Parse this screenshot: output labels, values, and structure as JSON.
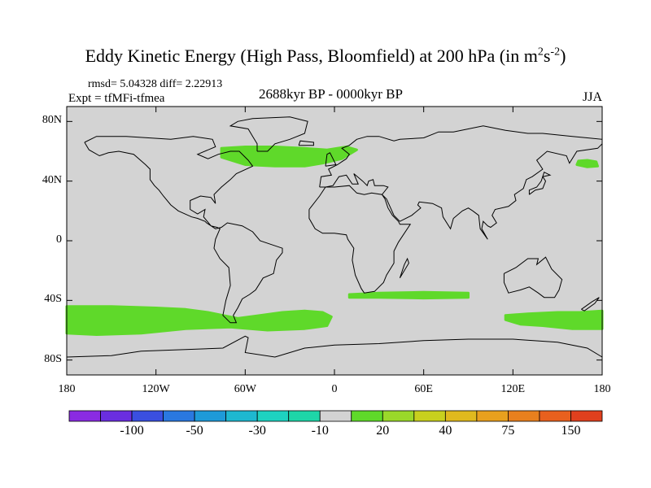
{
  "title": {
    "main": "Eddy Kinetic Energy (High Pass, Bloomfield) at 200 hPa (in m",
    "sup1": "2",
    "mid": "s",
    "sup2": "-2",
    "end": ")"
  },
  "stats": "rmsd= 5.04328 diff= 2.22913",
  "expt": "Expt = tfMFi-tfmea",
  "period": "2688kyr BP - 0000kyr BP",
  "season": "JJA",
  "chart_data": {
    "type": "map",
    "projection": "cylindrical equidistant",
    "lon_range": [
      -180,
      180
    ],
    "lat_range": [
      -90,
      90
    ],
    "ocean_land_fill": "#d3d3d3",
    "y_ticks": [
      {
        "lat": 80,
        "label": "80N"
      },
      {
        "lat": 40,
        "label": "40N"
      },
      {
        "lat": 0,
        "label": "0"
      },
      {
        "lat": -40,
        "label": "40S"
      },
      {
        "lat": -80,
        "label": "80S"
      }
    ],
    "x_ticks": [
      {
        "lon": -180,
        "label": "180"
      },
      {
        "lon": -120,
        "label": "120W"
      },
      {
        "lon": -60,
        "label": "60W"
      },
      {
        "lon": 0,
        "label": "0"
      },
      {
        "lon": 60,
        "label": "60E"
      },
      {
        "lon": 120,
        "label": "120E"
      },
      {
        "lon": 180,
        "label": "180"
      }
    ],
    "anomaly_regions": [
      {
        "name": "North Atlantic",
        "value_range": "10 to 20",
        "color": "#5fd92a",
        "polygon": [
          [
            -76,
            62
          ],
          [
            -60,
            63
          ],
          [
            -40,
            63
          ],
          [
            -20,
            62
          ],
          [
            -5,
            61
          ],
          [
            8,
            63
          ],
          [
            15,
            61
          ],
          [
            5,
            55
          ],
          [
            -8,
            52
          ],
          [
            -20,
            50
          ],
          [
            -40,
            50
          ],
          [
            -60,
            51
          ],
          [
            -76,
            56
          ]
        ]
      },
      {
        "name": "South Indian Ocean",
        "value_range": "10 to 20",
        "color": "#5fd92a",
        "polygon": [
          [
            10,
            -36
          ],
          [
            30,
            -35
          ],
          [
            60,
            -34.5
          ],
          [
            90,
            -35
          ],
          [
            90,
            -38
          ],
          [
            60,
            -38.5
          ],
          [
            30,
            -38
          ],
          [
            10,
            -38
          ]
        ]
      },
      {
        "name": "Southern Ocean Pacific",
        "value_range": "10 to 20",
        "color": "#5fd92a",
        "polygon": [
          [
            -180,
            -44
          ],
          [
            -150,
            -44
          ],
          [
            -120,
            -45
          ],
          [
            -100,
            -46
          ],
          [
            -85,
            -48
          ],
          [
            -75,
            -50
          ],
          [
            -65,
            -52
          ],
          [
            -50,
            -50
          ],
          [
            -35,
            -48
          ],
          [
            -20,
            -47
          ],
          [
            -8,
            -48
          ],
          [
            -2,
            -51
          ],
          [
            -5,
            -57
          ],
          [
            -20,
            -59
          ],
          [
            -45,
            -60
          ],
          [
            -70,
            -58
          ],
          [
            -100,
            -59
          ],
          [
            -130,
            -62
          ],
          [
            -160,
            -63
          ],
          [
            -180,
            -62
          ]
        ]
      },
      {
        "name": "Southern Ocean Australia",
        "value_range": "10 to 20",
        "color": "#5fd92a",
        "polygon": [
          [
            115,
            -50
          ],
          [
            130,
            -49
          ],
          [
            150,
            -48
          ],
          [
            165,
            -48
          ],
          [
            180,
            -47
          ],
          [
            180,
            -59
          ],
          [
            160,
            -59
          ],
          [
            140,
            -57
          ],
          [
            125,
            -56
          ],
          [
            115,
            -53
          ]
        ]
      },
      {
        "name": "North Pacific",
        "value_range": "10 to 20",
        "color": "#5fd92a",
        "polygon": [
          [
            163,
            51
          ],
          [
            170,
            49.5
          ],
          [
            177,
            50
          ],
          [
            176,
            53
          ],
          [
            170,
            54
          ],
          [
            164,
            53.5
          ]
        ]
      }
    ],
    "colorbar": {
      "colors": [
        "#8a2be2",
        "#6a2ee0",
        "#3a4fe0",
        "#2a78e0",
        "#1e9ad8",
        "#1eb8d0",
        "#1ed2c0",
        "#1ed6a8",
        "#d3d3d3",
        "#5fd92a",
        "#9ad82a",
        "#c8d01e",
        "#e0b91e",
        "#e8a01e",
        "#e8801e",
        "#e8601e",
        "#e0401e"
      ],
      "labels": [
        "-100",
        "-50",
        "-30",
        "-10",
        "20",
        "40",
        "75",
        "150"
      ]
    }
  }
}
